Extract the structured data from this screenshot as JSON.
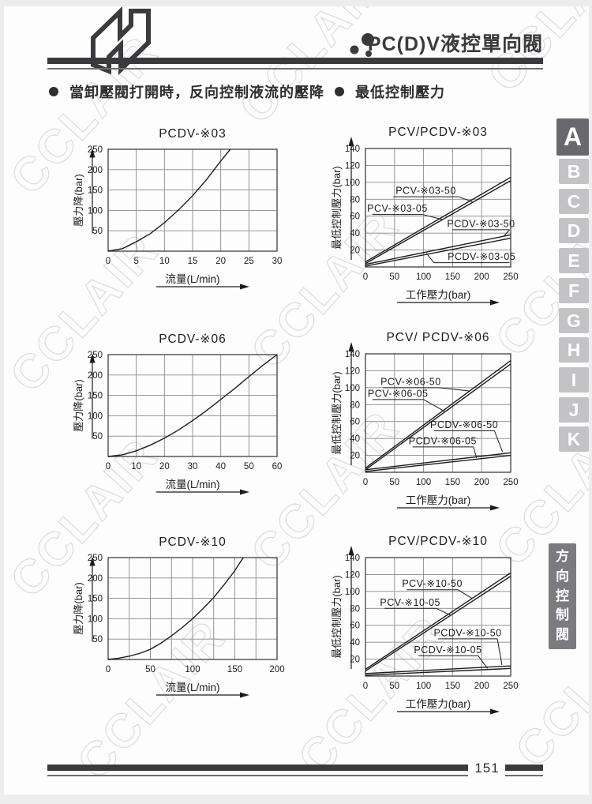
{
  "header": {
    "title": "PC(D)V液控單向閥"
  },
  "bullets": {
    "left": "當卸壓閥打開時，反向控制液流的壓降",
    "right": "最低控制壓力"
  },
  "sidebar": {
    "tabs": [
      "A",
      "B",
      "C",
      "D",
      "E",
      "F",
      "G",
      "H",
      "I",
      "J",
      "K"
    ],
    "active": "A",
    "category": "方向控制閥"
  },
  "footer": {
    "page_number": "151"
  },
  "watermark": {
    "text": "CCLAIR"
  },
  "colors": {
    "accent_dark": "#3b3b3d",
    "tab_active_bg": "#69696d",
    "tab_bg": "#c3c3c6",
    "category_bg": "#7b7b7f",
    "chart_line": "#1c1c1c",
    "grid": "#8a8a8a",
    "watermark": "#dedede"
  },
  "chart_data": [
    {
      "key": "pcdv-03",
      "type": "line",
      "kind": "left",
      "title": "PCDV-※03",
      "xlabel": "流量(L/min)",
      "ylabel": "壓力降(bar)",
      "xlim": [
        0,
        30
      ],
      "ylim": [
        0,
        250
      ],
      "x_ticks": [
        0,
        5,
        10,
        15,
        20,
        25,
        30
      ],
      "y_ticks": [
        50,
        100,
        150,
        200,
        250
      ],
      "x_divisions": 6,
      "y_divisions": 5,
      "grid": true,
      "legend": "none",
      "series": [
        {
          "name": "PCDV-※03",
          "points": [
            [
              0,
              0
            ],
            [
              2.5,
              6
            ],
            [
              5,
              23
            ],
            [
              7.5,
              43
            ],
            [
              10,
              70
            ],
            [
              12.5,
              101
            ],
            [
              15,
              136
            ],
            [
              17.5,
              176
            ],
            [
              20,
              221
            ],
            [
              21.7,
              250
            ]
          ]
        }
      ],
      "annotations": []
    },
    {
      "key": "pcv-pcdv-03",
      "type": "line",
      "kind": "right",
      "title": "PCV/PCDV-※03",
      "xlabel": "工作壓力(bar)",
      "ylabel": "最低控制壓力(bar)",
      "xlim": [
        0,
        250
      ],
      "ylim": [
        0,
        140
      ],
      "x_ticks": [
        0,
        50,
        100,
        150,
        200,
        250
      ],
      "y_ticks": [
        20,
        40,
        60,
        80,
        100,
        120,
        140
      ],
      "x_divisions": 5,
      "y_divisions": 7,
      "grid": true,
      "legend": "inline-callouts",
      "series": [
        {
          "name": "PCV-※03-50",
          "points": [
            [
              0,
              6
            ],
            [
              250,
              106
            ]
          ]
        },
        {
          "name": "PCV-※03-05",
          "points": [
            [
              0,
              4
            ],
            [
              250,
              102
            ]
          ]
        },
        {
          "name": "PCDV-※03-50",
          "points": [
            [
              0,
              3
            ],
            [
              250,
              38
            ]
          ]
        },
        {
          "name": "PCDV-※03-05",
          "points": [
            [
              0,
              1
            ],
            [
              250,
              34
            ]
          ]
        }
      ],
      "annotations": [
        {
          "text": "PCV-※03-50",
          "tx": 104,
          "ty": 90,
          "underline": [
            48,
            160,
            83
          ],
          "leader": [
            160,
            83,
            184,
            77
          ]
        },
        {
          "text": "PCV-※03-05",
          "tx": 55,
          "ty": 69,
          "underline": [
            12,
            98,
            62
          ],
          "leader": [
            98,
            62,
            133,
            56
          ]
        },
        {
          "text": "PCDV-※03-50",
          "tx": 199,
          "ty": 51,
          "underline": [
            150,
            248,
            44
          ],
          "leader": [
            248,
            44,
            239,
            37
          ]
        },
        {
          "text": "PCDV-※03-05",
          "tx": 200,
          "ty": 12,
          "underline": [
            118,
            248,
            5
          ],
          "leader": [
            118,
            5,
            105,
            16
          ]
        }
      ]
    },
    {
      "key": "pcdv-06",
      "type": "line",
      "kind": "left",
      "title": "PCDV-※06",
      "xlabel": "流量(L/min)",
      "ylabel": "壓力降(bar)",
      "xlim": [
        0,
        60
      ],
      "ylim": [
        0,
        250
      ],
      "x_ticks": [
        0,
        10,
        20,
        30,
        40,
        50,
        60
      ],
      "y_ticks": [
        50,
        100,
        150,
        200,
        250
      ],
      "x_divisions": 6,
      "y_divisions": 5,
      "grid": true,
      "legend": "none",
      "series": [
        {
          "name": "PCDV-※06",
          "points": [
            [
              0,
              0
            ],
            [
              5,
              4
            ],
            [
              10,
              14
            ],
            [
              15,
              28
            ],
            [
              20,
              45
            ],
            [
              25,
              65
            ],
            [
              30,
              88
            ],
            [
              35,
              113
            ],
            [
              40,
              140
            ],
            [
              45,
              167
            ],
            [
              50,
              196
            ],
            [
              55,
              224
            ],
            [
              60,
              250
            ]
          ]
        }
      ],
      "annotations": []
    },
    {
      "key": "pcv-pcdv-06",
      "type": "line",
      "kind": "right",
      "title": "PCV/ PCDV-※06",
      "xlabel": "工作壓力(bar)",
      "ylabel": "最低控制壓力(bar)",
      "xlim": [
        0,
        250
      ],
      "ylim": [
        0,
        140
      ],
      "x_ticks": [
        0,
        50,
        100,
        150,
        200,
        250
      ],
      "y_ticks": [
        20,
        40,
        60,
        80,
        100,
        120,
        140
      ],
      "x_divisions": 5,
      "y_divisions": 7,
      "grid": true,
      "legend": "inline-callouts",
      "series": [
        {
          "name": "PCV-※06-50",
          "points": [
            [
              0,
              5
            ],
            [
              250,
              132
            ]
          ]
        },
        {
          "name": "PCV-※06-05",
          "points": [
            [
              0,
              3
            ],
            [
              250,
              128
            ]
          ]
        },
        {
          "name": "PCDV-※06-50",
          "points": [
            [
              0,
              3
            ],
            [
              250,
              23
            ]
          ]
        },
        {
          "name": "PCDV-※06-05",
          "points": [
            [
              0,
              1
            ],
            [
              250,
              20
            ]
          ]
        }
      ],
      "annotations": [
        {
          "text": "PCV-※06-50",
          "tx": 78,
          "ty": 107,
          "underline": [
            30,
            126,
            100
          ],
          "leader": [
            126,
            100,
            180,
            96
          ]
        },
        {
          "text": "PCV-※06-05",
          "tx": 56,
          "ty": 93,
          "underline": [
            12,
            100,
            86
          ],
          "leader": [
            100,
            86,
            136,
            72
          ]
        },
        {
          "text": "PCDV-※06-50",
          "tx": 170,
          "ty": 56,
          "underline": [
            118,
            222,
            49
          ],
          "leader": [
            222,
            49,
            236,
            24
          ]
        },
        {
          "text": "PCDV-※06-05",
          "tx": 133,
          "ty": 37,
          "underline": [
            81,
            186,
            30
          ],
          "leader": [
            186,
            30,
            191,
            17
          ]
        }
      ]
    },
    {
      "key": "pcdv-10",
      "type": "line",
      "kind": "left",
      "title": "PCDV-※10",
      "xlabel": "流量(L/min)",
      "ylabel": "壓力降(bar)",
      "xlim": [
        0,
        200
      ],
      "ylim": [
        0,
        250
      ],
      "x_ticks": [
        0,
        50,
        100,
        150,
        200
      ],
      "y_ticks": [
        50,
        100,
        150,
        200,
        250
      ],
      "x_divisions": 8,
      "y_divisions": 5,
      "grid": true,
      "legend": "none",
      "series": [
        {
          "name": "PCDV-※10",
          "points": [
            [
              0,
              0
            ],
            [
              12.5,
              3
            ],
            [
              25,
              8
            ],
            [
              37.5,
              15
            ],
            [
              50,
              25
            ],
            [
              62.5,
              40
            ],
            [
              75,
              58
            ],
            [
              87.5,
              78
            ],
            [
              100,
              100
            ],
            [
              112.5,
              125
            ],
            [
              125,
              152
            ],
            [
              137.5,
              184
            ],
            [
              150,
              218
            ],
            [
              160,
              250
            ]
          ]
        }
      ],
      "annotations": []
    },
    {
      "key": "pcv-pcdv-10",
      "type": "line",
      "kind": "right",
      "title": "PCV/PCDV-※10",
      "xlabel": "工作壓力(bar)",
      "ylabel": "最低控制壓力(bar)",
      "xlim": [
        0,
        250
      ],
      "ylim": [
        0,
        140
      ],
      "x_ticks": [
        0,
        50,
        100,
        150,
        200,
        250
      ],
      "y_ticks": [
        20,
        40,
        60,
        80,
        100,
        120,
        140
      ],
      "x_divisions": 5,
      "y_divisions": 7,
      "grid": true,
      "legend": "inline-callouts",
      "series": [
        {
          "name": "PCV-※10-50",
          "points": [
            [
              0,
              8
            ],
            [
              250,
              122
            ]
          ]
        },
        {
          "name": "PCV-※10-05",
          "points": [
            [
              0,
              6
            ],
            [
              250,
              118
            ]
          ]
        },
        {
          "name": "PCDV-※10-50",
          "points": [
            [
              0,
              3
            ],
            [
              250,
              12
            ]
          ]
        },
        {
          "name": "PCDV-※10-05",
          "points": [
            [
              0,
              1
            ],
            [
              250,
              9
            ]
          ]
        }
      ],
      "annotations": [
        {
          "text": "PCV-※10-50",
          "tx": 115,
          "ty": 109,
          "underline": [
            71,
            159,
            102
          ],
          "leader": [
            159,
            102,
            183,
            92
          ]
        },
        {
          "text": "PCV-※10-05",
          "tx": 77,
          "ty": 87,
          "underline": [
            33,
            122,
            80
          ],
          "leader": [
            122,
            80,
            146,
            72
          ]
        },
        {
          "text": "PCDV-※10-50",
          "tx": 176,
          "ty": 51,
          "underline": [
            125,
            227,
            44
          ],
          "leader": [
            227,
            44,
            235,
            13
          ]
        },
        {
          "text": "PCDV-※10-05",
          "tx": 142,
          "ty": 31,
          "underline": [
            91,
            194,
            24
          ],
          "leader": [
            194,
            24,
            210,
            9
          ]
        }
      ]
    }
  ]
}
